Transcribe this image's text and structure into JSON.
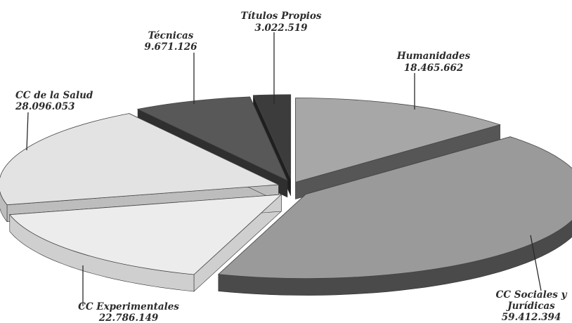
{
  "chart_data": {
    "type": "pie",
    "style": "3d-exploded",
    "title": "",
    "slices": [
      {
        "label": "Humanidades",
        "value_label": "18.465.662",
        "value": 18465662,
        "color": "#a7a7a7",
        "side_color": "#565656"
      },
      {
        "label": "CC Sociales y Jurídicas",
        "label_lines": [
          "CC Sociales y",
          "Jurídicas"
        ],
        "value_label": "59.412.394",
        "value": 59412394,
        "color": "#9a9a9a",
        "side_color": "#4a4a4a"
      },
      {
        "label": "CC Experimentales",
        "value_label": "22.786.149",
        "value": 22786149,
        "color": "#ececec",
        "side_color": "#cfcfcf"
      },
      {
        "label": "CC de la Salud",
        "value_label": "28.096.053",
        "value": 28096053,
        "color": "#e3e3e3",
        "side_color": "#bdbdbd"
      },
      {
        "label": "Técnicas",
        "value_label": "9.671.126",
        "value": 9671126,
        "color": "#585858",
        "side_color": "#2f2f2f"
      },
      {
        "label": "Títulos Propios",
        "value_label": "3.022.519",
        "value": 3022519,
        "color": "#3c3c3c",
        "side_color": "#1f1f1f"
      }
    ]
  }
}
